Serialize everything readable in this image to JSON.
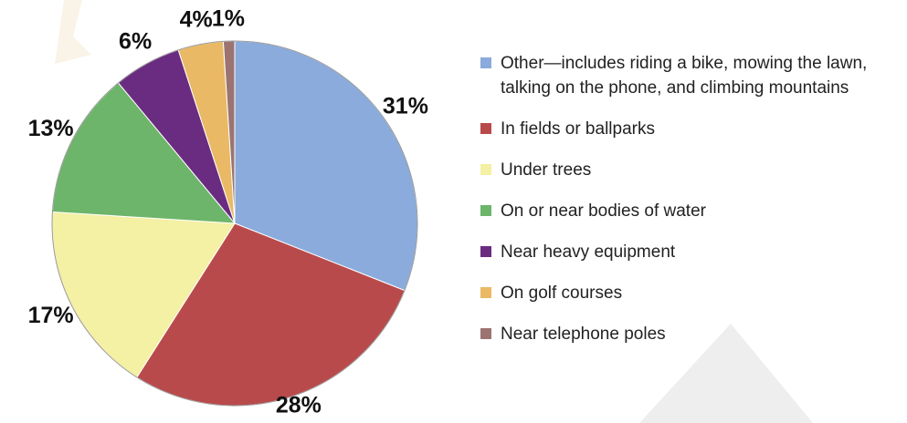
{
  "chart_data": {
    "type": "pie",
    "categories": [
      "Other—includes riding a bike, mowing the lawn, talking on the phone, and climbing mountains",
      "In fields or ballparks",
      "Under trees",
      "On or near bodies of water",
      "Near heavy equipment",
      "On golf courses",
      "Near telephone poles"
    ],
    "values": [
      31,
      28,
      17,
      13,
      6,
      4,
      1
    ],
    "value_labels": [
      "31%",
      "28%",
      "17%",
      "13%",
      "6%",
      "4%",
      "1%"
    ],
    "colors": [
      "#8aabdb",
      "#b94a4b",
      "#f4f0a4",
      "#6db56a",
      "#6a2c80",
      "#e9b965",
      "#9b7472"
    ]
  }
}
